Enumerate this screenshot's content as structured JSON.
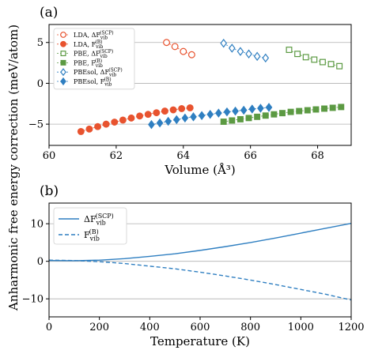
{
  "figure": {
    "ylabel": "Anharmonic free energy correction (meV/atom)"
  },
  "colors": {
    "LDA": "#e8532f",
    "PBE": "#5c9a43",
    "PBEsol": "#2f7fc1",
    "grid": "#b0b0b0"
  },
  "chart_data": [
    {
      "type": "scatter",
      "panel_label": "(a)",
      "xlabel": "Volume (Å³)",
      "ylabel": "",
      "xlim": [
        60,
        69
      ],
      "ylim": [
        -7.6,
        7.2
      ],
      "xticks": [
        60,
        62,
        64,
        66,
        68
      ],
      "yticks": [
        -5,
        0,
        5
      ],
      "grid": "horizontal",
      "legend_position": "upper-left",
      "series": [
        {
          "name": "LDA, ΔF_vib^(SCP)",
          "color_key": "LDA",
          "marker": "circle",
          "filled": false,
          "x": [
            63.5,
            63.75,
            64.0,
            64.25
          ],
          "y": [
            5.0,
            4.5,
            3.9,
            3.5
          ]
        },
        {
          "name": "LDA, F_vib^(B)",
          "color_key": "LDA",
          "marker": "circle",
          "filled": true,
          "x": [
            60.95,
            61.2,
            61.45,
            61.7,
            61.95,
            62.2,
            62.45,
            62.7,
            62.95,
            63.2,
            63.45,
            63.7,
            63.95,
            64.2
          ],
          "y": [
            -5.9,
            -5.6,
            -5.3,
            -5.0,
            -4.75,
            -4.5,
            -4.25,
            -4.0,
            -3.8,
            -3.6,
            -3.4,
            -3.25,
            -3.1,
            -3.0
          ]
        },
        {
          "name": "PBE, ΔF_vib^(SCP)",
          "color_key": "PBE",
          "marker": "square",
          "filled": false,
          "x": [
            67.15,
            67.4,
            67.65,
            67.9,
            68.15,
            68.4,
            68.65
          ],
          "y": [
            4.1,
            3.6,
            3.2,
            2.9,
            2.6,
            2.35,
            2.1
          ]
        },
        {
          "name": "PBE, F_vib^(B)",
          "color_key": "PBE",
          "marker": "square",
          "filled": true,
          "x": [
            65.2,
            65.45,
            65.7,
            65.95,
            66.2,
            66.45,
            66.7,
            66.95,
            67.2,
            67.45,
            67.7,
            67.95,
            68.2,
            68.45,
            68.7
          ],
          "y": [
            -4.7,
            -4.55,
            -4.4,
            -4.25,
            -4.1,
            -3.95,
            -3.8,
            -3.65,
            -3.5,
            -3.4,
            -3.3,
            -3.2,
            -3.1,
            -3.0,
            -2.9
          ]
        },
        {
          "name": "PBEsol, ΔF_vib^(SCP)",
          "color_key": "PBEsol",
          "marker": "diamond",
          "filled": false,
          "x": [
            65.2,
            65.45,
            65.7,
            65.95,
            66.2,
            66.45
          ],
          "y": [
            4.9,
            4.3,
            3.9,
            3.6,
            3.3,
            3.1
          ]
        },
        {
          "name": "PBEsol, F_vib^(B)",
          "color_key": "PBEsol",
          "marker": "diamond",
          "filled": true,
          "x": [
            63.05,
            63.3,
            63.55,
            63.8,
            64.05,
            64.3,
            64.55,
            64.8,
            65.05,
            65.3,
            65.55,
            65.8,
            66.05,
            66.3,
            66.55
          ],
          "y": [
            -5.05,
            -4.85,
            -4.65,
            -4.45,
            -4.25,
            -4.1,
            -3.95,
            -3.8,
            -3.65,
            -3.5,
            -3.4,
            -3.3,
            -3.15,
            -3.05,
            -2.95
          ]
        }
      ]
    },
    {
      "type": "line",
      "panel_label": "(b)",
      "xlabel": "Temperature (K)",
      "ylabel": "",
      "xlim": [
        0,
        1200
      ],
      "ylim": [
        -14.8,
        15.5
      ],
      "xticks": [
        0,
        200,
        400,
        600,
        800,
        1000,
        1200
      ],
      "yticks": [
        -10,
        0,
        10
      ],
      "grid": "horizontal",
      "legend_position": "upper-left",
      "series": [
        {
          "name": "ΔF_vib^(SCP)",
          "color_key": "PBEsol",
          "dash": "solid",
          "x": [
            0,
            100,
            200,
            300,
            400,
            500,
            600,
            700,
            800,
            900,
            1000,
            1100,
            1200
          ],
          "y": [
            0.2,
            0.15,
            0.3,
            0.7,
            1.3,
            2.0,
            2.9,
            3.9,
            5.0,
            6.2,
            7.5,
            8.8,
            10.1
          ]
        },
        {
          "name": "F_vib^(B)",
          "color_key": "PBEsol",
          "dash": "dashed",
          "x": [
            0,
            100,
            200,
            300,
            400,
            500,
            600,
            700,
            800,
            900,
            1000,
            1100,
            1200
          ],
          "y": [
            0.3,
            0.2,
            -0.1,
            -0.6,
            -1.3,
            -2.0,
            -2.9,
            -3.9,
            -5.0,
            -6.2,
            -7.5,
            -8.8,
            -10.3
          ]
        }
      ]
    }
  ]
}
